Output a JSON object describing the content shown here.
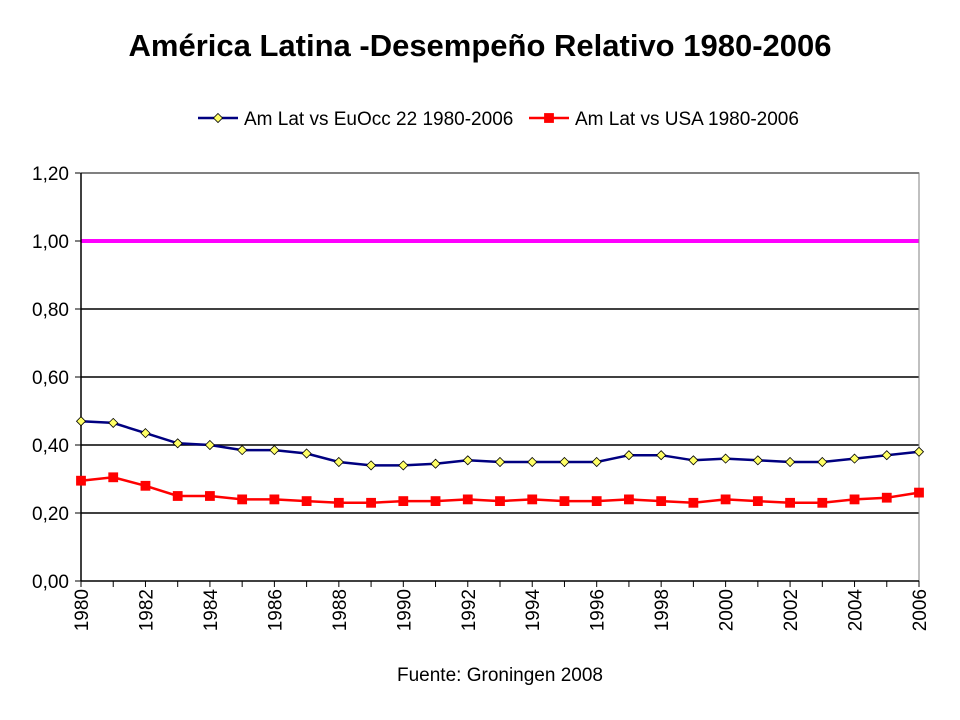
{
  "chart_data": {
    "type": "line",
    "title": "América Latina -Desempeño Relativo 1980-2006",
    "xlabel": "Fuente: Groningen 2008",
    "ylabel": "",
    "ylim": [
      0,
      1.2
    ],
    "yticks": [
      "0,00",
      "0,20",
      "0,40",
      "0,60",
      "0,80",
      "1,00",
      "1,20"
    ],
    "ytick_values": [
      0,
      0.2,
      0.4,
      0.6,
      0.8,
      1.0,
      1.2
    ],
    "x": [
      1980,
      1981,
      1982,
      1983,
      1984,
      1985,
      1986,
      1987,
      1988,
      1989,
      1990,
      1991,
      1992,
      1993,
      1994,
      1995,
      1996,
      1997,
      1998,
      1999,
      2000,
      2001,
      2002,
      2003,
      2004,
      2005,
      2006
    ],
    "xtick_labels": [
      "1980",
      "1982",
      "1984",
      "1986",
      "1988",
      "1990",
      "1992",
      "1994",
      "1996",
      "1998",
      "2000",
      "2002",
      "2004",
      "2006"
    ],
    "grid": true,
    "legend_position": "top",
    "reference_line": {
      "y": 1.0,
      "color": "#ff00ff"
    },
    "series": [
      {
        "name": "Am Lat vs EuOcc 22 1980-2006",
        "color": "#000080",
        "marker": "diamond",
        "marker_fill": "#ffff66",
        "values": [
          0.47,
          0.465,
          0.435,
          0.405,
          0.4,
          0.385,
          0.385,
          0.375,
          0.35,
          0.34,
          0.34,
          0.345,
          0.355,
          0.35,
          0.35,
          0.35,
          0.35,
          0.37,
          0.37,
          0.355,
          0.36,
          0.355,
          0.35,
          0.35,
          0.36,
          0.37,
          0.38
        ]
      },
      {
        "name": "Am Lat vs USA 1980-2006",
        "color": "#ff0000",
        "marker": "square",
        "marker_fill": "#ff0000",
        "values": [
          0.295,
          0.305,
          0.28,
          0.25,
          0.25,
          0.24,
          0.24,
          0.235,
          0.23,
          0.23,
          0.235,
          0.235,
          0.24,
          0.235,
          0.24,
          0.235,
          0.235,
          0.24,
          0.235,
          0.23,
          0.24,
          0.235,
          0.23,
          0.23,
          0.24,
          0.245,
          0.26
        ]
      }
    ]
  }
}
